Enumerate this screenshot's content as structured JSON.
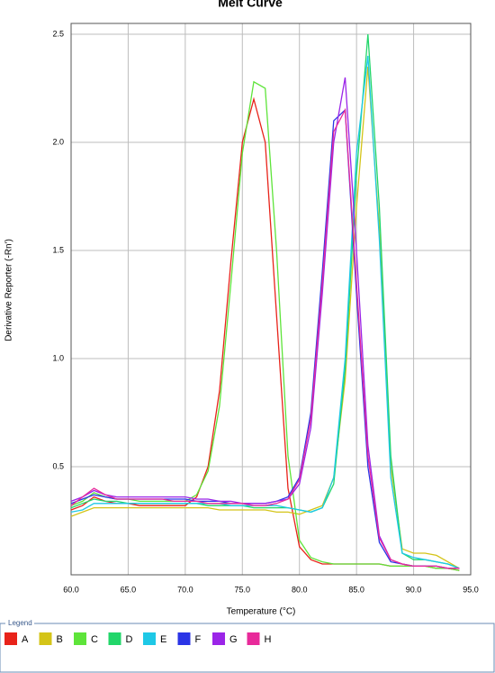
{
  "chart_data": {
    "type": "line",
    "title": "Melt Curve",
    "x_label": "Temperature (°C)",
    "y_label": "Derivative Reporter (-Rn')",
    "legend_title": "Legend",
    "x": [
      60,
      61,
      62,
      63,
      64,
      65,
      66,
      67,
      68,
      69,
      70,
      71,
      72,
      73,
      74,
      75,
      76,
      77,
      78,
      79,
      80,
      81,
      82,
      83,
      84,
      85,
      86,
      87,
      88,
      89,
      90,
      91,
      92,
      93,
      94
    ],
    "xlim": [
      60,
      95
    ],
    "ylim": [
      0,
      2.55
    ],
    "xticks": [
      {
        "value": 60,
        "label": "60.0"
      },
      {
        "value": 65,
        "label": "65.0"
      },
      {
        "value": 70,
        "label": "70.0"
      },
      {
        "value": 75,
        "label": "75.0"
      },
      {
        "value": 80,
        "label": "80.0"
      },
      {
        "value": 85,
        "label": "85.0"
      },
      {
        "value": 90,
        "label": "90.0"
      },
      {
        "value": 95,
        "label": "95.0"
      }
    ],
    "yticks": [
      0.5,
      {
        "value": 1,
        "label": "1.0"
      },
      1.5,
      {
        "value": 2,
        "label": "2.0"
      },
      2.5
    ],
    "grid": true,
    "series": [
      {
        "name": "A",
        "color": "#e8231a",
        "values": [
          0.3,
          0.32,
          0.36,
          0.34,
          0.33,
          0.33,
          0.32,
          0.32,
          0.32,
          0.32,
          0.32,
          0.36,
          0.5,
          0.85,
          1.45,
          2.0,
          2.2,
          2.0,
          1.2,
          0.4,
          0.13,
          0.07,
          0.05,
          0.05,
          0.05,
          0.05,
          0.05,
          0.05,
          0.04,
          0.04,
          0.04,
          0.04,
          0.03,
          0.03,
          0.02
        ]
      },
      {
        "name": "B",
        "color": "#d4c418",
        "values": [
          0.27,
          0.29,
          0.31,
          0.31,
          0.31,
          0.31,
          0.31,
          0.31,
          0.31,
          0.31,
          0.31,
          0.31,
          0.31,
          0.3,
          0.3,
          0.3,
          0.3,
          0.3,
          0.29,
          0.29,
          0.28,
          0.3,
          0.32,
          0.45,
          0.9,
          1.7,
          2.35,
          1.6,
          0.5,
          0.12,
          0.1,
          0.1,
          0.09,
          0.06,
          0.03
        ]
      },
      {
        "name": "C",
        "color": "#5ee43a",
        "values": [
          0.32,
          0.34,
          0.38,
          0.36,
          0.35,
          0.35,
          0.34,
          0.34,
          0.34,
          0.34,
          0.34,
          0.37,
          0.48,
          0.78,
          1.35,
          1.95,
          2.28,
          2.25,
          1.5,
          0.55,
          0.16,
          0.08,
          0.06,
          0.05,
          0.05,
          0.05,
          0.05,
          0.05,
          0.04,
          0.04,
          0.04,
          0.04,
          0.03,
          0.03,
          0.02
        ]
      },
      {
        "name": "D",
        "color": "#22d66a",
        "values": [
          0.31,
          0.33,
          0.35,
          0.34,
          0.34,
          0.33,
          0.33,
          0.33,
          0.33,
          0.33,
          0.33,
          0.33,
          0.32,
          0.32,
          0.32,
          0.32,
          0.31,
          0.31,
          0.31,
          0.31,
          0.3,
          0.29,
          0.31,
          0.42,
          0.95,
          1.85,
          2.5,
          1.7,
          0.55,
          0.1,
          0.07,
          0.07,
          0.06,
          0.05,
          0.03
        ]
      },
      {
        "name": "E",
        "color": "#1ec8e6",
        "values": [
          0.29,
          0.3,
          0.33,
          0.33,
          0.33,
          0.33,
          0.33,
          0.33,
          0.33,
          0.33,
          0.33,
          0.33,
          0.33,
          0.33,
          0.32,
          0.32,
          0.32,
          0.32,
          0.32,
          0.31,
          0.3,
          0.29,
          0.31,
          0.45,
          1.0,
          1.95,
          2.4,
          1.55,
          0.45,
          0.1,
          0.08,
          0.07,
          0.06,
          0.05,
          0.03
        ]
      },
      {
        "name": "F",
        "color": "#2b35e6",
        "values": [
          0.33,
          0.35,
          0.37,
          0.36,
          0.35,
          0.35,
          0.35,
          0.35,
          0.35,
          0.35,
          0.35,
          0.34,
          0.34,
          0.34,
          0.33,
          0.33,
          0.33,
          0.33,
          0.34,
          0.36,
          0.45,
          0.75,
          1.4,
          2.1,
          2.15,
          1.3,
          0.5,
          0.15,
          0.06,
          0.05,
          0.04,
          0.04,
          0.04,
          0.03,
          0.03
        ]
      },
      {
        "name": "G",
        "color": "#9b25e8",
        "values": [
          0.34,
          0.36,
          0.39,
          0.37,
          0.36,
          0.36,
          0.36,
          0.36,
          0.36,
          0.36,
          0.36,
          0.35,
          0.35,
          0.34,
          0.34,
          0.33,
          0.33,
          0.33,
          0.34,
          0.35,
          0.42,
          0.68,
          1.3,
          2.0,
          2.3,
          1.5,
          0.6,
          0.18,
          0.07,
          0.05,
          0.04,
          0.04,
          0.04,
          0.03,
          0.03
        ]
      },
      {
        "name": "H",
        "color": "#e82a9a",
        "values": [
          0.32,
          0.36,
          0.4,
          0.37,
          0.35,
          0.35,
          0.35,
          0.35,
          0.35,
          0.34,
          0.34,
          0.34,
          0.33,
          0.33,
          0.33,
          0.33,
          0.32,
          0.32,
          0.33,
          0.35,
          0.44,
          0.72,
          1.35,
          2.05,
          2.15,
          1.35,
          0.55,
          0.17,
          0.07,
          0.05,
          0.04,
          0.04,
          0.04,
          0.03,
          0.03
        ]
      }
    ]
  }
}
